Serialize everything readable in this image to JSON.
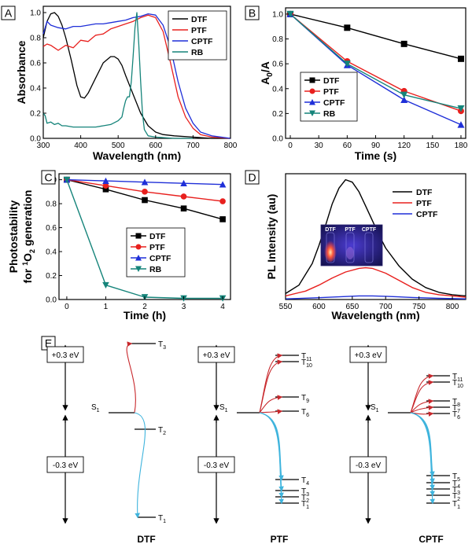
{
  "panels": {
    "A": {
      "label": "A",
      "xlabel": "Wavelength (nm)",
      "ylabel": "Absorbance",
      "xlim": [
        300,
        800
      ],
      "ylim": [
        0,
        1.05
      ],
      "xticks": [
        "300",
        "400",
        "500",
        "600",
        "700",
        "800"
      ],
      "yticks": [
        "0.0",
        "0.2",
        "0.4",
        "0.6",
        "0.8",
        "1.0"
      ],
      "legend": [
        "DTF",
        "PTF",
        "CPTF",
        "RB"
      ]
    },
    "B": {
      "label": "B",
      "xlabel": "Time (s)",
      "ylabel_main": "A",
      "ylabel_sub": "0",
      "ylabel_tail": "/A",
      "xticks": [
        "0",
        "30",
        "60",
        "90",
        "120",
        "150",
        "180"
      ],
      "yticks": [
        "0.0",
        "0.2",
        "0.4",
        "0.6",
        "0.8",
        "1.0"
      ],
      "legend": [
        "DTF",
        "PTF",
        "CPTF",
        "RB"
      ]
    },
    "C": {
      "label": "C",
      "xlabel": "Time (h)",
      "ylabel_line1": "Photostability",
      "ylabel_line2_a": "for ",
      "ylabel_line2_sup": "1",
      "ylabel_line2_b": "O",
      "ylabel_line2_sub": "2",
      "ylabel_line2_c": " generation",
      "xticks": [
        "0",
        "1",
        "2",
        "3",
        "4"
      ],
      "yticks": [
        "0.0",
        "0.2",
        "0.4",
        "0.6",
        "0.8",
        "1.0"
      ],
      "legend": [
        "DTF",
        "PTF",
        "CPTF",
        "RB"
      ]
    },
    "D": {
      "label": "D",
      "xlabel": "Wavelength (nm)",
      "ylabel": "PL Intensity (au)",
      "xticks": [
        "550",
        "600",
        "650",
        "700",
        "750",
        "800"
      ],
      "legend": [
        "DTF",
        "PTF",
        "CPTF"
      ],
      "photo_labels": [
        "DTF",
        "PTF",
        "CPTF"
      ]
    },
    "E": {
      "label": "E",
      "energy_plus": "+0.3 eV",
      "energy_minus": "-0.3 eV",
      "s1": "S",
      "s1_sub": "1",
      "diagrams": [
        {
          "name": "DTF",
          "states": [
            {
              "t": "T",
              "sub": "3"
            },
            {
              "t": "T",
              "sub": "2"
            },
            {
              "t": "T",
              "sub": "1"
            }
          ]
        },
        {
          "name": "PTF",
          "states": [
            {
              "t": "T",
              "sub": "11"
            },
            {
              "t": "T",
              "sub": "10"
            },
            {
              "t": "T",
              "sub": "9"
            },
            {
              "t": "T",
              "sub": "6"
            },
            {
              "t": "T",
              "sub": "4"
            },
            {
              "t": "T",
              "sub": "3"
            },
            {
              "t": "T",
              "sub": "2"
            },
            {
              "t": "T",
              "sub": "1"
            }
          ]
        },
        {
          "name": "CPTF",
          "states": [
            {
              "t": "T",
              "sub": "11"
            },
            {
              "t": "T",
              "sub": "10"
            },
            {
              "t": "T",
              "sub": "8"
            },
            {
              "t": "T",
              "sub": "7"
            },
            {
              "t": "T",
              "sub": "6"
            },
            {
              "t": "T",
              "sub": "5"
            },
            {
              "t": "T",
              "sub": "4"
            },
            {
              "t": "T",
              "sub": "3"
            },
            {
              "t": "T",
              "sub": "2"
            },
            {
              "t": "T",
              "sub": "1"
            }
          ]
        }
      ]
    }
  },
  "colors": {
    "DTF": "#000000",
    "PTF": "#e8201e",
    "CPTF": "#1f2fd8",
    "RB": "#15847a",
    "arrow_up": "#c8282c",
    "arrow_down": "#3fb4dd"
  },
  "chart_data": [
    {
      "panel": "A",
      "type": "line",
      "xlabel": "Wavelength (nm)",
      "ylabel": "Absorbance",
      "xlim": [
        300,
        800
      ],
      "ylim": [
        0,
        1.05
      ],
      "series": [
        {
          "name": "DTF",
          "x": [
            300,
            310,
            320,
            330,
            340,
            350,
            360,
            375,
            390,
            400,
            410,
            420,
            440,
            460,
            480,
            490,
            500,
            510,
            520,
            540,
            560,
            580,
            600,
            620,
            650,
            700,
            750,
            800
          ],
          "y": [
            0.8,
            0.93,
            0.99,
            1.0,
            0.97,
            0.9,
            0.8,
            0.62,
            0.42,
            0.33,
            0.32,
            0.36,
            0.48,
            0.6,
            0.65,
            0.65,
            0.63,
            0.58,
            0.5,
            0.35,
            0.2,
            0.1,
            0.05,
            0.03,
            0.02,
            0.01,
            0.0,
            0.0
          ]
        },
        {
          "name": "PTF",
          "x": [
            300,
            310,
            320,
            330,
            340,
            360,
            380,
            400,
            420,
            440,
            460,
            480,
            500,
            520,
            540,
            560,
            580,
            600,
            620,
            640,
            660,
            680,
            700,
            720,
            750,
            800
          ],
          "y": [
            0.73,
            0.75,
            0.74,
            0.72,
            0.7,
            0.74,
            0.72,
            0.78,
            0.77,
            0.82,
            0.83,
            0.87,
            0.89,
            0.91,
            0.93,
            0.96,
            0.98,
            0.96,
            0.85,
            0.6,
            0.33,
            0.17,
            0.08,
            0.03,
            0.01,
            0.0
          ]
        },
        {
          "name": "CPTF",
          "x": [
            300,
            310,
            320,
            340,
            360,
            380,
            400,
            420,
            440,
            460,
            480,
            500,
            520,
            540,
            560,
            580,
            600,
            620,
            640,
            660,
            680,
            700,
            720,
            750,
            800
          ],
          "y": [
            0.83,
            0.93,
            0.9,
            0.88,
            0.87,
            0.89,
            0.89,
            0.9,
            0.91,
            0.91,
            0.92,
            0.93,
            0.94,
            0.96,
            0.97,
            0.99,
            0.98,
            0.9,
            0.72,
            0.45,
            0.24,
            0.12,
            0.05,
            0.02,
            0.0
          ]
        },
        {
          "name": "RB",
          "x": [
            300,
            305,
            310,
            320,
            330,
            340,
            350,
            360,
            380,
            400,
            420,
            440,
            460,
            480,
            500,
            510,
            515,
            520,
            525,
            530,
            535,
            540,
            545,
            550,
            555,
            560,
            565,
            570,
            580,
            600,
            650,
            700
          ],
          "y": [
            0.2,
            0.18,
            0.12,
            0.13,
            0.11,
            0.12,
            0.1,
            0.1,
            0.09,
            0.09,
            0.09,
            0.09,
            0.1,
            0.11,
            0.14,
            0.17,
            0.24,
            0.3,
            0.33,
            0.33,
            0.45,
            0.65,
            0.88,
            1.0,
            0.75,
            0.45,
            0.2,
            0.07,
            0.02,
            0.01,
            0.0,
            0.0
          ]
        }
      ]
    },
    {
      "panel": "B",
      "type": "line",
      "xlabel": "Time (s)",
      "ylabel": "A0/A",
      "xlim": [
        -5,
        185
      ],
      "ylim": [
        0,
        1.05
      ],
      "x": [
        0,
        60,
        120,
        180
      ],
      "series": [
        {
          "name": "DTF",
          "values": [
            1.0,
            0.89,
            0.76,
            0.64
          ],
          "marker": "square"
        },
        {
          "name": "PTF",
          "values": [
            1.0,
            0.62,
            0.38,
            0.22
          ],
          "marker": "circle"
        },
        {
          "name": "CPTF",
          "values": [
            1.0,
            0.59,
            0.31,
            0.11
          ],
          "marker": "triangle-up"
        },
        {
          "name": "RB",
          "values": [
            1.0,
            0.6,
            0.35,
            0.24
          ],
          "marker": "triangle-down"
        }
      ]
    },
    {
      "panel": "C",
      "type": "line",
      "xlabel": "Time (h)",
      "ylabel": "Photostability for 1O2 generation",
      "xlim": [
        -0.2,
        4.2
      ],
      "ylim": [
        0,
        1.05
      ],
      "x": [
        0,
        1,
        2,
        3,
        4
      ],
      "series": [
        {
          "name": "DTF",
          "values": [
            1.0,
            0.92,
            0.83,
            0.76,
            0.67
          ],
          "marker": "square"
        },
        {
          "name": "PTF",
          "values": [
            1.0,
            0.95,
            0.9,
            0.86,
            0.82
          ],
          "marker": "circle"
        },
        {
          "name": "CPTF",
          "values": [
            1.0,
            0.99,
            0.98,
            0.97,
            0.96
          ],
          "marker": "triangle-up"
        },
        {
          "name": "RB",
          "values": [
            1.0,
            0.12,
            0.02,
            0.01,
            0.01
          ],
          "marker": "triangle-down"
        }
      ]
    },
    {
      "panel": "D",
      "type": "line",
      "xlabel": "Wavelength (nm)",
      "ylabel": "PL Intensity (au)",
      "xlim": [
        550,
        820
      ],
      "ylim": [
        0,
        1.05
      ],
      "series": [
        {
          "name": "DTF",
          "x": [
            550,
            570,
            590,
            600,
            610,
            620,
            630,
            640,
            650,
            660,
            670,
            680,
            690,
            700,
            720,
            740,
            760,
            780,
            800,
            820
          ],
          "y": [
            0.05,
            0.12,
            0.3,
            0.45,
            0.62,
            0.8,
            0.93,
            1.0,
            0.98,
            0.9,
            0.78,
            0.66,
            0.54,
            0.43,
            0.28,
            0.17,
            0.1,
            0.06,
            0.04,
            0.03
          ]
        },
        {
          "name": "PTF",
          "x": [
            550,
            580,
            600,
            620,
            640,
            660,
            670,
            680,
            700,
            720,
            740,
            760,
            780,
            800,
            820
          ],
          "y": [
            0.03,
            0.07,
            0.12,
            0.18,
            0.23,
            0.26,
            0.265,
            0.26,
            0.22,
            0.16,
            0.1,
            0.06,
            0.04,
            0.03,
            0.02
          ]
        },
        {
          "name": "CPTF",
          "x": [
            550,
            600,
            640,
            660,
            680,
            700,
            740,
            780,
            820
          ],
          "y": [
            0.005,
            0.015,
            0.025,
            0.03,
            0.03,
            0.027,
            0.017,
            0.01,
            0.005
          ]
        }
      ]
    }
  ]
}
